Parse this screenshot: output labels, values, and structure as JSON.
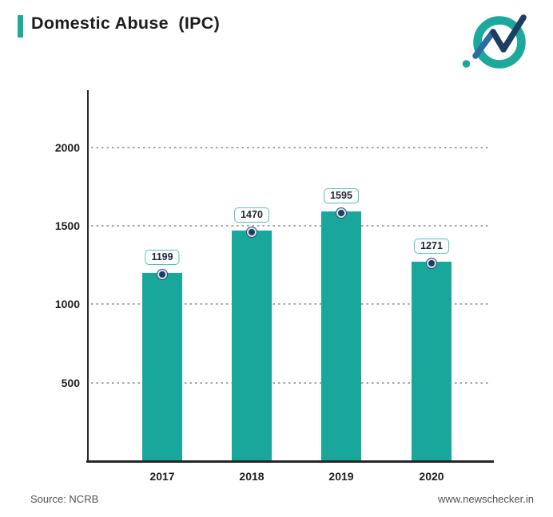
{
  "header": {
    "title": "Domestic Abuse  (IPC)"
  },
  "logo": {
    "icon": "newschecker-logo",
    "ring_color": "#1BA99B",
    "zigzag_dark": "#1D3E63",
    "zigzag_light": "#2D6BA6"
  },
  "chart_data": {
    "type": "bar",
    "title": "Domestic Abuse (IPC)",
    "categories": [
      "2017",
      "2018",
      "2019",
      "2020"
    ],
    "values": [
      1199,
      1470,
      1595,
      1271
    ],
    "value_labels": [
      "1199",
      "1470",
      "1595",
      "1271"
    ],
    "xlabel": "",
    "ylabel": "",
    "yticks": [
      500,
      1000,
      1500,
      2000
    ],
    "ylim": [
      0,
      2366
    ],
    "grid": "horizontal-dotted",
    "legend": "none",
    "bar_color": "#18A79A",
    "marker_color": "#1D3E63",
    "label_border_color": "#50C2B6"
  },
  "footer": {
    "source": "Source: NCRB",
    "website": "www.newschecker.in"
  }
}
